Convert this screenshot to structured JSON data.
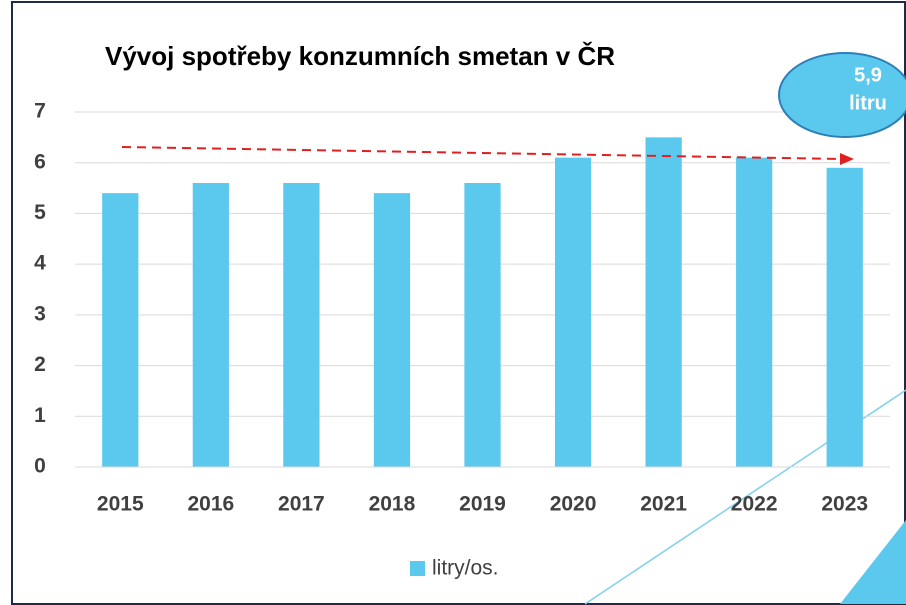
{
  "chart_data": {
    "type": "bar",
    "title": "Vývoj spotřeby konzumních smetan v ČR",
    "categories": [
      "2015",
      "2016",
      "2017",
      "2018",
      "2019",
      "2020",
      "2021",
      "2022",
      "2023"
    ],
    "series": [
      {
        "name": "litry/os.",
        "color": "#5bc8ee",
        "values": [
          5.4,
          5.6,
          5.6,
          5.4,
          5.6,
          6.1,
          6.5,
          6.1,
          5.9
        ]
      }
    ],
    "ylim": [
      0,
      7
    ],
    "yticks": [
      0,
      1,
      2,
      3,
      4,
      5,
      6,
      7
    ],
    "grid": true,
    "annotation": [
      "5,9",
      "litru"
    ]
  }
}
